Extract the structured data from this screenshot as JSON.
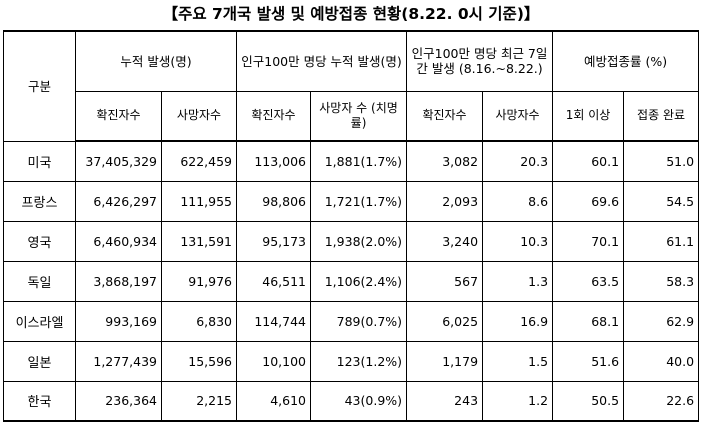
{
  "title": "【주요 7개국 발생 및 예방접종 현황(8.22. 0시 기준)】",
  "headers": {
    "group": "구분",
    "cumulative": "누적 발생(명)",
    "per_million_cumulative": "인구100만 명당 누적 발생(명)",
    "per_million_recent": "인구100만 명당 최근 7일간 발생 (8.16.~8.22.)",
    "vaccination": "예방접종률 (%)",
    "confirmed": "확진자수",
    "deaths": "사망자수",
    "confirmed_pm": "확진자수",
    "deaths_pm": "사망자 수 (치명률)",
    "confirmed_recent": "확진자수",
    "deaths_recent": "사망자수",
    "dose1": "1회 이상",
    "complete": "접종 완료"
  },
  "rows": [
    {
      "country": "미국",
      "cum_cases": "37,405,329",
      "cum_deaths": "622,459",
      "pm_cases": "113,006",
      "pm_deaths": "1,881(1.7%)",
      "recent_cases": "3,082",
      "recent_deaths": "20.3",
      "dose1": "60.1",
      "complete": "51.0"
    },
    {
      "country": "프랑스",
      "cum_cases": "6,426,297",
      "cum_deaths": "111,955",
      "pm_cases": "98,806",
      "pm_deaths": "1,721(1.7%)",
      "recent_cases": "2,093",
      "recent_deaths": "8.6",
      "dose1": "69.6",
      "complete": "54.5"
    },
    {
      "country": "영국",
      "cum_cases": "6,460,934",
      "cum_deaths": "131,591",
      "pm_cases": "95,173",
      "pm_deaths": "1,938(2.0%)",
      "recent_cases": "3,240",
      "recent_deaths": "10.3",
      "dose1": "70.1",
      "complete": "61.1"
    },
    {
      "country": "독일",
      "cum_cases": "3,868,197",
      "cum_deaths": "91,976",
      "pm_cases": "46,511",
      "pm_deaths": "1,106(2.4%)",
      "recent_cases": "567",
      "recent_deaths": "1.3",
      "dose1": "63.5",
      "complete": "58.3"
    },
    {
      "country": "이스라엘",
      "cum_cases": "993,169",
      "cum_deaths": "6,830",
      "pm_cases": "114,744",
      "pm_deaths": "789(0.7%)",
      "recent_cases": "6,025",
      "recent_deaths": "16.9",
      "dose1": "68.1",
      "complete": "62.9"
    },
    {
      "country": "일본",
      "cum_cases": "1,277,439",
      "cum_deaths": "15,596",
      "pm_cases": "10,100",
      "pm_deaths": "123(1.2%)",
      "recent_cases": "1,179",
      "recent_deaths": "1.5",
      "dose1": "51.6",
      "complete": "40.0"
    },
    {
      "country": "한국",
      "cum_cases": "236,364",
      "cum_deaths": "2,215",
      "pm_cases": "4,610",
      "pm_deaths": "43(0.9%)",
      "recent_cases": "243",
      "recent_deaths": "1.2",
      "dose1": "50.5",
      "complete": "22.6"
    }
  ]
}
